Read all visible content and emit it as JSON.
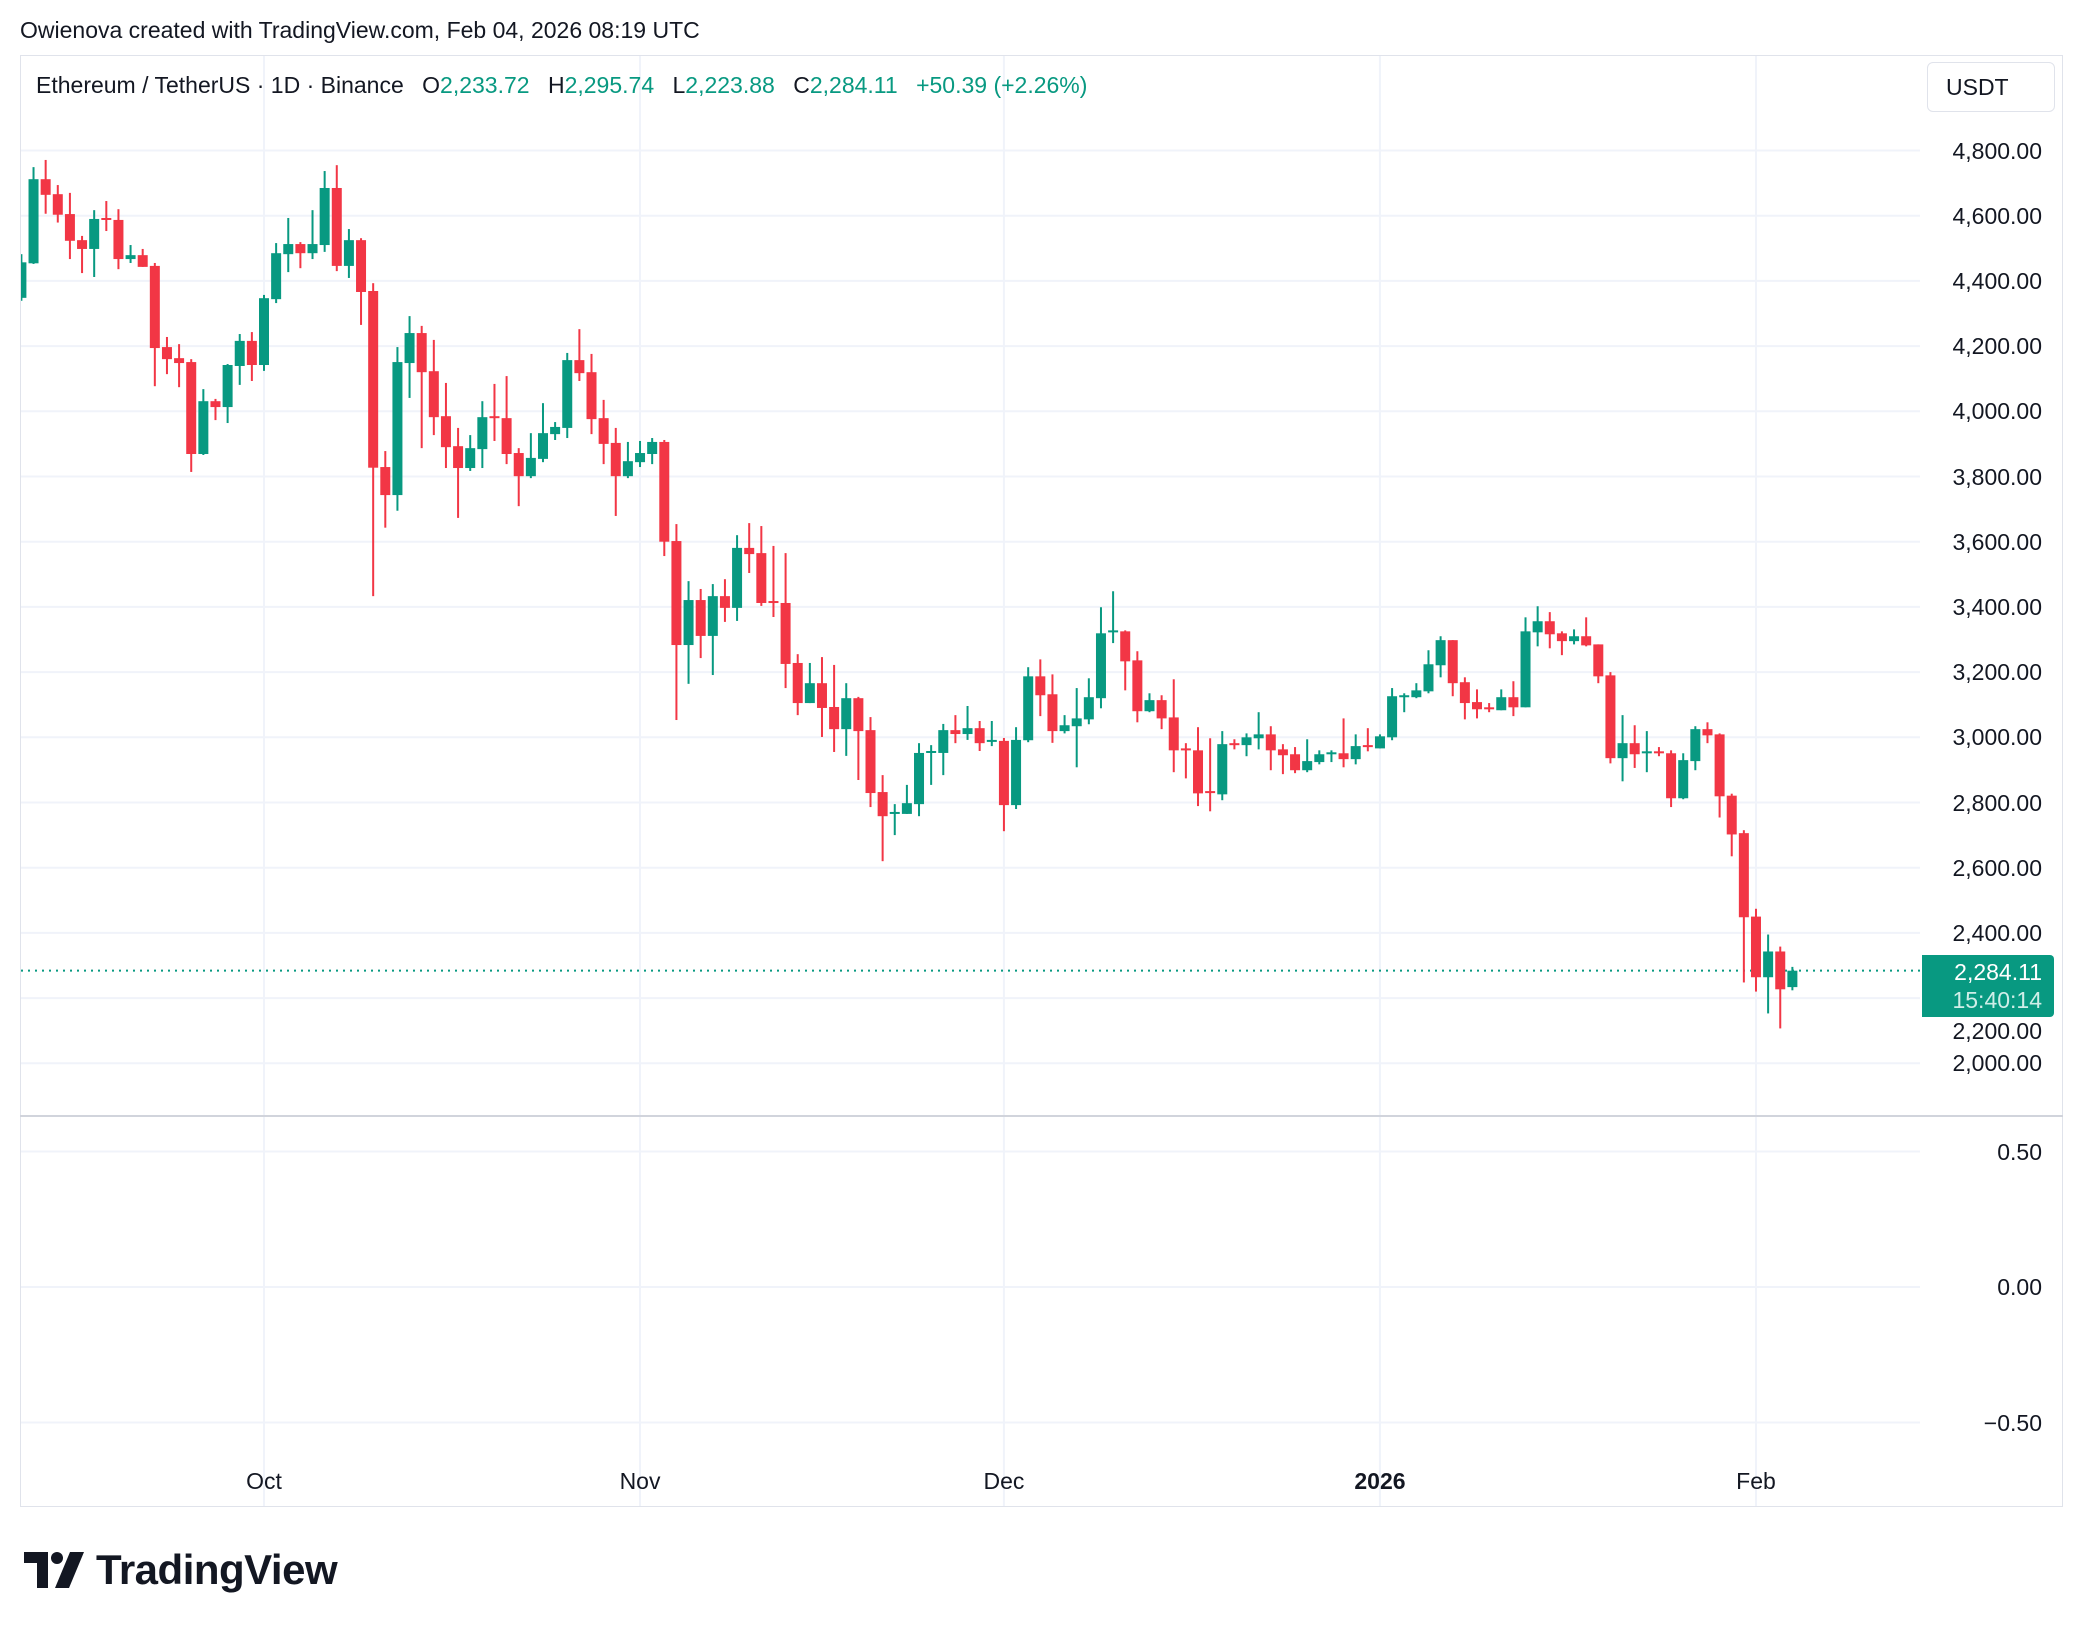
{
  "attribution": "Owienova created with TradingView.com, Feb 04, 2026 08:19 UTC",
  "legend": {
    "symbol": "Ethereum / TetherUS · 1D · Binance",
    "o_label": "O",
    "o": "2,233.72",
    "h_label": "H",
    "h": "2,295.74",
    "l_label": "L",
    "l": "2,223.88",
    "c_label": "C",
    "c": "2,284.11",
    "change": "+50.39 (+2.26%)"
  },
  "currency_button": "USDT",
  "price_axis": {
    "ticks": [
      4800,
      4600,
      4400,
      4200,
      4000,
      3800,
      3600,
      3400,
      3200,
      3000,
      2800,
      2600,
      2400,
      2200,
      2000
    ],
    "labels": [
      "4,800.00",
      "4,600.00",
      "4,400.00",
      "4,200.00",
      "4,000.00",
      "3,800.00",
      "3,600.00",
      "3,400.00",
      "3,200.00",
      "3,000.00",
      "2,800.00",
      "2,600.00",
      "2,400.00",
      "2,200.00",
      "2,000.00"
    ]
  },
  "indicator_axis": {
    "ticks": [
      0.5,
      0,
      -0.5
    ],
    "labels": [
      "0.50",
      "0.00",
      "−0.50"
    ]
  },
  "time_axis": [
    {
      "text": "Oct",
      "date": "2025-10-01",
      "bold": false
    },
    {
      "text": "Nov",
      "date": "2025-11-01",
      "bold": false
    },
    {
      "text": "Dec",
      "date": "2025-12-01",
      "bold": false
    },
    {
      "text": "2026",
      "date": "2026-01-01",
      "bold": true
    },
    {
      "text": "Feb",
      "date": "2026-02-01",
      "bold": false
    }
  ],
  "last_price": {
    "value": "2,284.11",
    "price": 2284.11,
    "countdown": "15:40:14"
  },
  "logo": "TradingView",
  "colors": {
    "up": "#089981",
    "down": "#F23645",
    "grid": "#f0f3fa",
    "text": "#131722"
  },
  "chart_data": {
    "type": "candlestick",
    "interval": "1D",
    "columns": [
      "date",
      "open",
      "high",
      "low",
      "close"
    ],
    "ylim": [
      1880,
      4920
    ],
    "grid": true,
    "candles": [
      [
        "2025-09-11",
        4348,
        4482,
        4339,
        4457
      ],
      [
        "2025-09-12",
        4454,
        4749,
        4452,
        4712
      ],
      [
        "2025-09-13",
        4712,
        4771,
        4606,
        4664
      ],
      [
        "2025-09-14",
        4666,
        4694,
        4579,
        4603
      ],
      [
        "2025-09-15",
        4605,
        4670,
        4467,
        4523
      ],
      [
        "2025-09-16",
        4525,
        4538,
        4424,
        4498
      ],
      [
        "2025-09-17",
        4498,
        4617,
        4412,
        4590
      ],
      [
        "2025-09-18",
        4593,
        4645,
        4553,
        4588
      ],
      [
        "2025-09-19",
        4587,
        4620,
        4436,
        4467
      ],
      [
        "2025-09-20",
        4467,
        4510,
        4455,
        4479
      ],
      [
        "2025-09-21",
        4479,
        4498,
        4443,
        4443
      ],
      [
        "2025-09-22",
        4446,
        4455,
        4077,
        4194
      ],
      [
        "2025-09-23",
        4197,
        4228,
        4114,
        4160
      ],
      [
        "2025-09-24",
        4163,
        4206,
        4074,
        4148
      ],
      [
        "2025-09-25",
        4151,
        4160,
        3814,
        3869
      ],
      [
        "2025-09-26",
        3869,
        4068,
        3866,
        4031
      ],
      [
        "2025-09-27",
        4031,
        4038,
        3973,
        4013
      ],
      [
        "2025-09-28",
        4013,
        4145,
        3964,
        4142
      ],
      [
        "2025-09-29",
        4139,
        4237,
        4081,
        4216
      ],
      [
        "2025-09-30",
        4216,
        4243,
        4093,
        4142
      ],
      [
        "2025-10-01",
        4142,
        4357,
        4124,
        4347
      ],
      [
        "2025-10-02",
        4344,
        4516,
        4332,
        4485
      ],
      [
        "2025-10-03",
        4482,
        4593,
        4427,
        4513
      ],
      [
        "2025-10-04",
        4513,
        4519,
        4439,
        4485
      ],
      [
        "2025-10-05",
        4485,
        4617,
        4467,
        4513
      ],
      [
        "2025-10-06",
        4510,
        4737,
        4489,
        4685
      ],
      [
        "2025-10-07",
        4685,
        4755,
        4430,
        4446
      ],
      [
        "2025-10-08",
        4446,
        4559,
        4409,
        4525
      ],
      [
        "2025-10-09",
        4525,
        4531,
        4265,
        4366
      ],
      [
        "2025-10-10",
        4369,
        4393,
        3433,
        3827
      ],
      [
        "2025-10-11",
        3829,
        3878,
        3643,
        3743
      ],
      [
        "2025-10-12",
        3743,
        4197,
        3695,
        4151
      ],
      [
        "2025-10-13",
        4148,
        4292,
        4041,
        4240
      ],
      [
        "2025-10-14",
        4240,
        4262,
        3887,
        4120
      ],
      [
        "2025-10-15",
        4123,
        4219,
        3927,
        3982
      ],
      [
        "2025-10-16",
        3985,
        4087,
        3826,
        3890
      ],
      [
        "2025-10-17",
        3893,
        3949,
        3673,
        3826
      ],
      [
        "2025-10-18",
        3826,
        3927,
        3817,
        3887
      ],
      [
        "2025-10-19",
        3884,
        4031,
        3826,
        3982
      ],
      [
        "2025-10-20",
        3985,
        4084,
        3909,
        3979
      ],
      [
        "2025-10-21",
        3979,
        4108,
        3838,
        3869
      ],
      [
        "2025-10-22",
        3872,
        3887,
        3709,
        3801
      ],
      [
        "2025-10-23",
        3801,
        3933,
        3795,
        3857
      ],
      [
        "2025-10-24",
        3854,
        4025,
        3844,
        3933
      ],
      [
        "2025-10-25",
        3930,
        3967,
        3912,
        3952
      ],
      [
        "2025-10-26",
        3949,
        4179,
        3918,
        4157
      ],
      [
        "2025-10-27",
        4157,
        4252,
        4093,
        4117
      ],
      [
        "2025-10-28",
        4120,
        4176,
        3930,
        3976
      ],
      [
        "2025-10-29",
        3979,
        4035,
        3838,
        3900
      ],
      [
        "2025-10-30",
        3903,
        3949,
        3679,
        3801
      ],
      [
        "2025-10-31",
        3801,
        3906,
        3795,
        3847
      ],
      [
        "2025-11-01",
        3844,
        3909,
        3829,
        3872
      ],
      [
        "2025-11-02",
        3869,
        3918,
        3838,
        3906
      ],
      [
        "2025-11-03",
        3906,
        3912,
        3556,
        3600
      ],
      [
        "2025-11-04",
        3602,
        3654,
        3053,
        3283
      ],
      [
        "2025-11-05",
        3283,
        3479,
        3164,
        3421
      ],
      [
        "2025-11-06",
        3421,
        3455,
        3243,
        3311
      ],
      [
        "2025-11-07",
        3311,
        3470,
        3191,
        3433
      ],
      [
        "2025-11-08",
        3433,
        3485,
        3354,
        3397
      ],
      [
        "2025-11-09",
        3397,
        3620,
        3357,
        3581
      ],
      [
        "2025-11-10",
        3581,
        3657,
        3504,
        3562
      ],
      [
        "2025-11-11",
        3565,
        3648,
        3403,
        3412
      ],
      [
        "2025-11-12",
        3418,
        3587,
        3369,
        3415
      ],
      [
        "2025-11-13",
        3412,
        3565,
        3151,
        3225
      ],
      [
        "2025-11-14",
        3228,
        3255,
        3068,
        3105
      ],
      [
        "2025-11-15",
        3105,
        3228,
        3105,
        3166
      ],
      [
        "2025-11-16",
        3166,
        3246,
        3001,
        3090
      ],
      [
        "2025-11-17",
        3093,
        3222,
        2955,
        3025
      ],
      [
        "2025-11-18",
        3025,
        3166,
        2943,
        3120
      ],
      [
        "2025-11-19",
        3120,
        3124,
        2869,
        3019
      ],
      [
        "2025-11-20",
        3022,
        3062,
        2786,
        2829
      ],
      [
        "2025-11-21",
        2832,
        2884,
        2620,
        2758
      ],
      [
        "2025-11-22",
        2768,
        2795,
        2700,
        2771
      ],
      [
        "2025-11-23",
        2765,
        2854,
        2765,
        2798
      ],
      [
        "2025-11-24",
        2795,
        2982,
        2758,
        2952
      ],
      [
        "2025-11-25",
        2955,
        2976,
        2854,
        2958
      ],
      [
        "2025-11-26",
        2952,
        3041,
        2884,
        3022
      ],
      [
        "2025-11-27",
        3022,
        3068,
        2982,
        3010
      ],
      [
        "2025-11-28",
        3010,
        3096,
        2992,
        3028
      ],
      [
        "2025-11-29",
        3028,
        3050,
        2958,
        2982
      ],
      [
        "2025-11-30",
        2989,
        3050,
        2973,
        2992
      ],
      [
        "2025-12-01",
        2989,
        2998,
        2712,
        2792
      ],
      [
        "2025-12-02",
        2792,
        3031,
        2780,
        2992
      ],
      [
        "2025-12-03",
        2991,
        3215,
        2985,
        3187
      ],
      [
        "2025-12-04",
        3187,
        3239,
        3065,
        3129
      ],
      [
        "2025-12-05",
        3132,
        3193,
        2983,
        3019
      ],
      [
        "2025-12-06",
        3019,
        3068,
        3012,
        3037
      ],
      [
        "2025-12-07",
        3034,
        3151,
        2908,
        3058
      ],
      [
        "2025-12-08",
        3055,
        3181,
        3040,
        3123
      ],
      [
        "2025-12-09",
        3120,
        3399,
        3089,
        3319
      ],
      [
        "2025-12-10",
        3325,
        3448,
        3289,
        3328
      ],
      [
        "2025-12-11",
        3325,
        3328,
        3144,
        3233
      ],
      [
        "2025-12-12",
        3236,
        3264,
        3046,
        3080
      ],
      [
        "2025-12-13",
        3080,
        3135,
        3077,
        3114
      ],
      [
        "2025-12-14",
        3114,
        3129,
        3025,
        3058
      ],
      [
        "2025-12-15",
        3061,
        3178,
        2893,
        2960
      ],
      [
        "2025-12-16",
        2966,
        2982,
        2874,
        2960
      ],
      [
        "2025-12-17",
        2960,
        3031,
        2789,
        2828
      ],
      [
        "2025-12-18",
        2835,
        2997,
        2773,
        2831
      ],
      [
        "2025-12-19",
        2825,
        3019,
        2807,
        2979
      ],
      [
        "2025-12-20",
        2982,
        2994,
        2963,
        2979
      ],
      [
        "2025-12-21",
        2976,
        3012,
        2942,
        3000
      ],
      [
        "2025-12-22",
        2997,
        3077,
        2963,
        3009
      ],
      [
        "2025-12-23",
        3009,
        3034,
        2899,
        2960
      ],
      [
        "2025-12-24",
        2963,
        2979,
        2887,
        2945
      ],
      [
        "2025-12-25",
        2948,
        2970,
        2890,
        2899
      ],
      [
        "2025-12-26",
        2899,
        2994,
        2893,
        2927
      ],
      [
        "2025-12-27",
        2924,
        2960,
        2917,
        2948
      ],
      [
        "2025-12-28",
        2951,
        2960,
        2924,
        2954
      ],
      [
        "2025-12-29",
        2951,
        3058,
        2908,
        2933
      ],
      [
        "2025-12-30",
        2933,
        3009,
        2917,
        2973
      ],
      [
        "2025-12-31",
        2976,
        3028,
        2957,
        2973
      ],
      [
        "2026-01-01",
        2966,
        3009,
        2966,
        3003
      ],
      [
        "2026-01-02",
        3000,
        3151,
        2991,
        3126
      ],
      [
        "2026-01-03",
        3126,
        3135,
        3077,
        3129
      ],
      [
        "2026-01-04",
        3123,
        3166,
        3120,
        3144
      ],
      [
        "2026-01-05",
        3141,
        3267,
        3135,
        3224
      ],
      [
        "2026-01-06",
        3221,
        3310,
        3184,
        3298
      ],
      [
        "2026-01-07",
        3298,
        3298,
        3126,
        3166
      ],
      [
        "2026-01-08",
        3169,
        3184,
        3055,
        3105
      ],
      [
        "2026-01-09",
        3108,
        3147,
        3058,
        3086
      ],
      [
        "2026-01-10",
        3092,
        3105,
        3077,
        3089
      ],
      [
        "2026-01-11",
        3083,
        3147,
        3083,
        3123
      ],
      [
        "2026-01-12",
        3123,
        3172,
        3065,
        3092
      ],
      [
        "2026-01-13",
        3092,
        3368,
        3092,
        3325
      ],
      [
        "2026-01-14",
        3322,
        3402,
        3279,
        3356
      ],
      [
        "2026-01-15",
        3356,
        3384,
        3273,
        3316
      ],
      [
        "2026-01-16",
        3319,
        3325,
        3252,
        3295
      ],
      [
        "2026-01-17",
        3295,
        3331,
        3285,
        3310
      ],
      [
        "2026-01-18",
        3310,
        3368,
        3279,
        3282
      ],
      [
        "2026-01-19",
        3285,
        3285,
        3166,
        3187
      ],
      [
        "2026-01-20",
        3190,
        3200,
        2920,
        2936
      ],
      [
        "2026-01-21",
        2936,
        3068,
        2865,
        2982
      ],
      [
        "2026-01-22",
        2982,
        3037,
        2906,
        2948
      ],
      [
        "2026-01-23",
        2954,
        3019,
        2893,
        2957
      ],
      [
        "2026-01-24",
        2957,
        2970,
        2942,
        2954
      ],
      [
        "2026-01-25",
        2951,
        2960,
        2786,
        2813
      ],
      [
        "2026-01-26",
        2813,
        2951,
        2810,
        2930
      ],
      [
        "2026-01-27",
        2927,
        3034,
        2899,
        3025
      ],
      [
        "2026-01-28",
        3025,
        3046,
        2982,
        3006
      ],
      [
        "2026-01-29",
        3009,
        3012,
        2754,
        2819
      ],
      [
        "2026-01-30",
        2821,
        2827,
        2635,
        2702
      ],
      [
        "2026-01-31",
        2706,
        2715,
        2248,
        2448
      ],
      [
        "2026-02-01",
        2450,
        2474,
        2220,
        2264
      ],
      [
        "2026-02-02",
        2264,
        2395,
        2153,
        2343
      ],
      [
        "2026-02-03",
        2343,
        2358,
        2107,
        2227
      ],
      [
        "2026-02-04",
        2233.72,
        2295.74,
        2223.88,
        2284.11
      ]
    ]
  }
}
